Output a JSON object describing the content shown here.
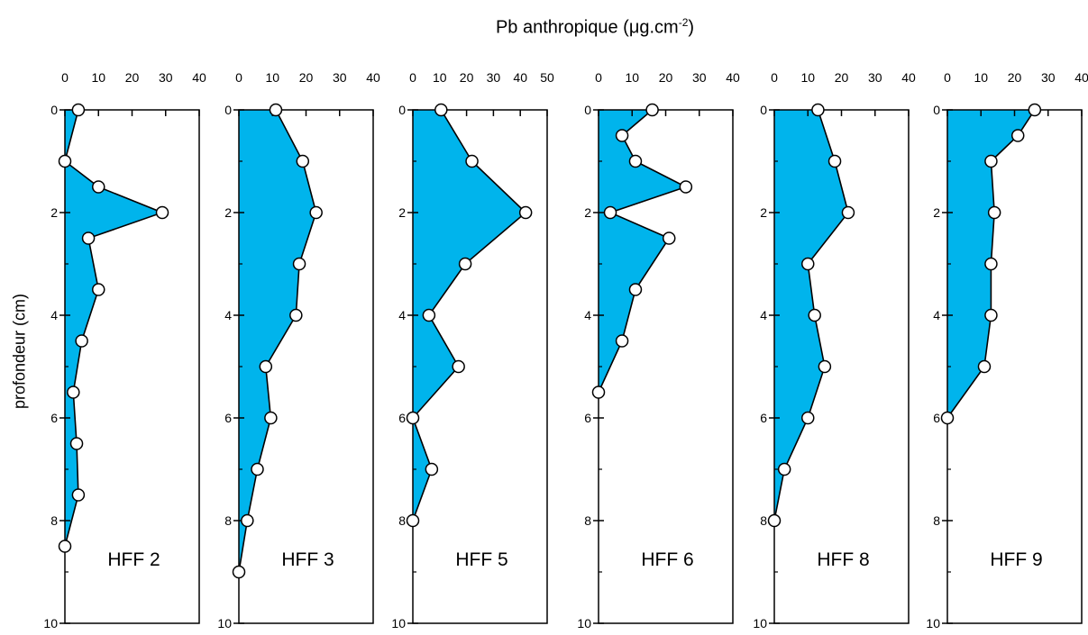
{
  "figure": {
    "title": "Pb anthropique (μg.cm",
    "title_sup": "-2",
    "title_end": ")",
    "ylabel": "profondeur (cm)"
  },
  "colors": {
    "fill": "#00b4ec",
    "line": "#000000",
    "marker_fill": "#ffffff"
  },
  "chart_data": [
    {
      "type": "area",
      "name": "HFF 2",
      "xlim": [
        0,
        40
      ],
      "ylim": [
        10,
        0
      ],
      "xticks": [
        0,
        10,
        20,
        30,
        40
      ],
      "yticks": [
        0,
        2,
        4,
        6,
        8,
        10
      ],
      "x": [
        4,
        0,
        10,
        29,
        7,
        10,
        5,
        2.5,
        3.5,
        4,
        0
      ],
      "y": [
        0,
        1,
        1.5,
        2,
        2.5,
        3.5,
        4.5,
        5.5,
        6.5,
        7.5,
        8.5
      ]
    },
    {
      "type": "area",
      "name": "HFF 3",
      "xlim": [
        0,
        40
      ],
      "ylim": [
        10,
        0
      ],
      "xticks": [
        0,
        10,
        20,
        30,
        40
      ],
      "yticks": [
        0,
        2,
        4,
        6,
        8,
        10
      ],
      "x": [
        11,
        19,
        23,
        18,
        17,
        8,
        9.5,
        5.5,
        2.5,
        0
      ],
      "y": [
        0,
        1,
        2,
        3,
        4,
        5,
        6,
        7,
        8,
        9
      ]
    },
    {
      "type": "area",
      "name": "HFF 5",
      "xlim": [
        0,
        50
      ],
      "ylim": [
        10,
        0
      ],
      "xticks": [
        0,
        10,
        20,
        30,
        40,
        50
      ],
      "yticks": [
        0,
        2,
        4,
        6,
        8,
        10
      ],
      "x": [
        10.5,
        22,
        42,
        19.5,
        6,
        17,
        0,
        7,
        0
      ],
      "y": [
        0,
        1,
        2,
        3,
        4,
        5,
        6,
        7,
        8
      ]
    },
    {
      "type": "area",
      "name": "HFF 6",
      "xlim": [
        0,
        40
      ],
      "ylim": [
        10,
        0
      ],
      "xticks": [
        0,
        10,
        20,
        30,
        40
      ],
      "yticks": [
        0,
        2,
        4,
        6,
        8,
        10
      ],
      "x": [
        16,
        7,
        11,
        26,
        3.5,
        21,
        11,
        7,
        0
      ],
      "y": [
        0,
        0.5,
        1,
        1.5,
        2,
        2.5,
        3.5,
        4.5,
        5.5
      ]
    },
    {
      "type": "area",
      "name": "HFF 8",
      "xlim": [
        0,
        40
      ],
      "ylim": [
        10,
        0
      ],
      "xticks": [
        0,
        10,
        20,
        30,
        40
      ],
      "yticks": [
        0,
        2,
        4,
        6,
        8,
        10
      ],
      "x": [
        13,
        18,
        22,
        10,
        12,
        15,
        10,
        3,
        0
      ],
      "y": [
        0,
        1,
        2,
        3,
        4,
        5,
        6,
        7,
        8
      ]
    },
    {
      "type": "area",
      "name": "HFF 9",
      "xlim": [
        0,
        40
      ],
      "ylim": [
        10,
        0
      ],
      "xticks": [
        0,
        10,
        20,
        30,
        40
      ],
      "yticks": [
        0,
        2,
        4,
        6,
        8,
        10
      ],
      "x": [
        26,
        21,
        13,
        14,
        13,
        13,
        11,
        0
      ],
      "y": [
        0,
        0.5,
        1,
        2,
        3,
        4,
        5,
        6
      ]
    }
  ]
}
